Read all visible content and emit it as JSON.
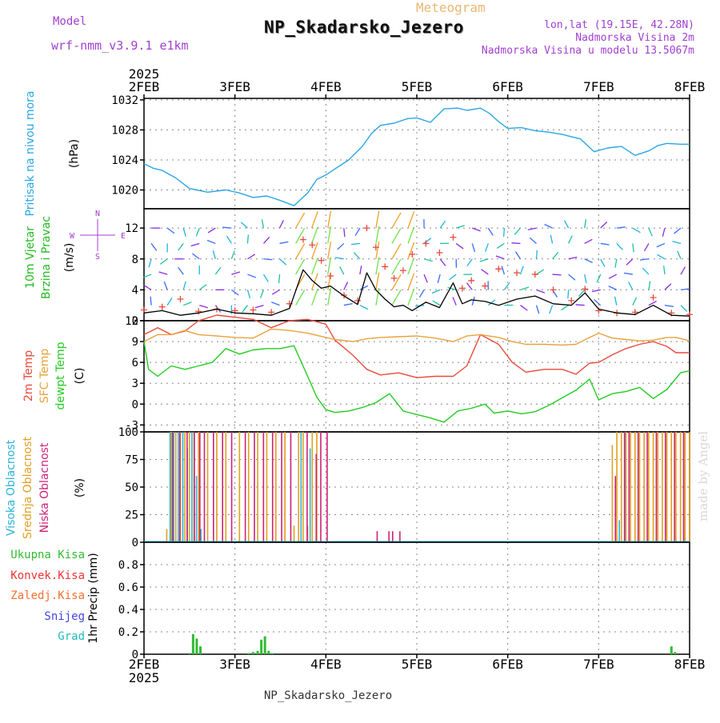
{
  "header": {
    "model_label": "Model",
    "model_name": "wrf-nmm_v3.9.1  e1km",
    "suptitle": "Meteogram",
    "title": "NP_Skadarsko_Jezero",
    "location_line1": "lon,lat (19.15E, 42.28N)",
    "location_line2": "Nadmorska Visina 2m",
    "location_line3": "Nadmorska Visina u modelu 13.5067m",
    "footer": "NP_Skadarsko_Jezero",
    "credit": "made by Angel"
  },
  "colors": {
    "pressure": "#29a6e6",
    "wind_label": "#22bb22",
    "temp2m": "#e84a3c",
    "sfc": "#e8a23a",
    "dewpt": "#22cc22",
    "high_cloud": "#2bb3d9",
    "mid_cloud": "#e0a020",
    "low_cloud": "#cc2277",
    "total_precip": "#33bb33",
    "conv_precip": "#e33",
    "froz_precip": "#f07030",
    "snow": "#4444dd",
    "grad": "#22bbbb",
    "header_purple": "#a040d0",
    "suptitle_color": "#e8b870"
  },
  "chart_data": [
    {
      "type": "line",
      "name": "pressure",
      "title": "",
      "ylabel": [
        "Pritisak na nivou mora",
        "(hPa)"
      ],
      "x_year_top": "2025",
      "x_ticks": [
        "2FEB",
        "3FEB",
        "4FEB",
        "5FEB",
        "6FEB",
        "7FEB",
        "8FEB"
      ],
      "xlim": [
        0,
        6
      ],
      "ylim": [
        1017.5,
        1032.2
      ],
      "yticks": [
        1020,
        1024,
        1028,
        1032
      ],
      "grid": true,
      "series": [
        {
          "x": [
            0,
            0.1,
            0.2,
            0.35,
            0.5,
            0.7,
            0.9,
            1.05,
            1.2,
            1.35,
            1.5,
            1.65,
            1.8,
            1.9,
            2.0,
            2.1,
            2.25,
            2.4,
            2.5,
            2.6,
            2.75,
            2.9,
            3.0,
            3.15,
            3.3,
            3.45,
            3.55,
            3.7,
            3.8,
            3.9,
            4.0,
            4.15,
            4.3,
            4.45,
            4.6,
            4.7,
            4.8,
            4.95,
            5.1,
            5.25,
            5.4,
            5.55,
            5.65,
            5.75,
            5.9,
            6.0
          ],
          "y": [
            1023.5,
            1022.9,
            1022.6,
            1021.6,
            1020.2,
            1019.7,
            1020.0,
            1019.6,
            1019.0,
            1019.2,
            1018.6,
            1017.9,
            1019.6,
            1021.4,
            1022.0,
            1022.8,
            1024.0,
            1025.8,
            1027.5,
            1028.6,
            1028.9,
            1029.5,
            1029.6,
            1029.0,
            1030.8,
            1030.9,
            1030.6,
            1030.9,
            1030.2,
            1029.1,
            1028.2,
            1028.3,
            1027.9,
            1027.7,
            1027.4,
            1027.1,
            1026.8,
            1025.1,
            1025.6,
            1025.8,
            1024.6,
            1025.2,
            1025.9,
            1026.2,
            1026.1,
            1026.1
          ]
        }
      ]
    },
    {
      "type": "line",
      "name": "wind",
      "title": "",
      "ylabel": [
        "10m Vjetar",
        "Brzina i Pravac",
        "(m/s)"
      ],
      "compass_labels": [
        "N",
        "W",
        "E",
        "S"
      ],
      "xlim": [
        0,
        6
      ],
      "ylim": [
        0,
        14.5
      ],
      "yticks": [
        0,
        4,
        8,
        12
      ],
      "grid": true,
      "series": [
        {
          "name": "speed",
          "x": [
            0,
            0.2,
            0.4,
            0.6,
            0.8,
            1.0,
            1.2,
            1.4,
            1.6,
            1.75,
            1.85,
            1.95,
            2.05,
            2.2,
            2.35,
            2.45,
            2.55,
            2.65,
            2.75,
            2.85,
            2.95,
            3.1,
            3.25,
            3.4,
            3.5,
            3.6,
            3.75,
            3.9,
            4.1,
            4.3,
            4.5,
            4.7,
            4.85,
            5.0,
            5.2,
            5.4,
            5.6,
            5.8,
            6.0
          ],
          "y": [
            1.0,
            1.3,
            0.7,
            1.0,
            1.5,
            1.0,
            0.9,
            0.7,
            1.6,
            6.6,
            5.2,
            4.2,
            4.5,
            3.2,
            2.1,
            6.2,
            4.0,
            2.8,
            1.8,
            2.0,
            1.3,
            2.4,
            1.7,
            4.9,
            2.2,
            2.7,
            2.5,
            2.0,
            2.8,
            3.2,
            2.2,
            2.0,
            3.6,
            1.5,
            1.0,
            0.8,
            2.0,
            0.7,
            0.6
          ]
        },
        {
          "name": "gust",
          "x": [
            0,
            0.2,
            0.4,
            0.6,
            0.8,
            1.0,
            1.2,
            1.4,
            1.6,
            1.75,
            1.85,
            1.95,
            2.05,
            2.2,
            2.35,
            2.45,
            2.55,
            2.65,
            2.75,
            2.85,
            2.95,
            3.1,
            3.25,
            3.4,
            3.5,
            3.6,
            3.75,
            3.9,
            4.1,
            4.3,
            4.5,
            4.7,
            4.85,
            5.0,
            5.2,
            5.4,
            5.6,
            5.8,
            6.0
          ],
          "y": [
            1.4,
            1.8,
            2.8,
            1.2,
            1.5,
            1.3,
            1.4,
            1.1,
            2.2,
            10.5,
            9.8,
            7.8,
            5.8,
            3.3,
            2.6,
            12.0,
            9.5,
            7.0,
            5.5,
            6.5,
            8.6,
            10.0,
            8.8,
            10.8,
            4.2,
            5.2,
            4.5,
            6.7,
            6.2,
            6.0,
            4.0,
            2.6,
            4.1,
            1.3,
            1.0,
            1.1,
            3.0,
            1.0,
            0.8
          ]
        }
      ]
    },
    {
      "type": "line",
      "name": "temperature",
      "title": "",
      "ylabel": [
        "2m Temp",
        "SFC Temp",
        "dewpt Temp",
        "(C)"
      ],
      "xlim": [
        0,
        6
      ],
      "ylim": [
        -4,
        12
      ],
      "yticks": [
        -3,
        0,
        3,
        6,
        9,
        12
      ],
      "grid": true,
      "series": [
        {
          "name": "2m Temp",
          "x": [
            0,
            0.15,
            0.3,
            0.45,
            0.6,
            0.8,
            1.0,
            1.2,
            1.4,
            1.6,
            1.8,
            2.0,
            2.1,
            2.3,
            2.45,
            2.6,
            2.8,
            3.0,
            3.2,
            3.4,
            3.55,
            3.7,
            3.9,
            4.05,
            4.2,
            4.4,
            4.6,
            4.75,
            4.9,
            5.0,
            5.15,
            5.3,
            5.45,
            5.6,
            5.75,
            5.85,
            6.0
          ],
          "y": [
            10.0,
            11.0,
            10.0,
            10.5,
            12.0,
            12.8,
            12.5,
            12.2,
            11.0,
            12.0,
            12.2,
            11.5,
            9.2,
            7.0,
            5.0,
            4.2,
            4.5,
            3.8,
            4.0,
            4.0,
            5.5,
            10.0,
            8.6,
            6.0,
            4.6,
            5.0,
            5.0,
            4.3,
            5.9,
            6.0,
            7.1,
            8.0,
            8.6,
            9.0,
            8.3,
            7.4,
            7.4
          ]
        },
        {
          "name": "SFC Temp",
          "x": [
            0,
            0.15,
            0.3,
            0.45,
            0.6,
            0.8,
            1.0,
            1.2,
            1.4,
            1.6,
            1.8,
            2.0,
            2.1,
            2.3,
            2.45,
            2.6,
            2.8,
            3.0,
            3.2,
            3.4,
            3.55,
            3.7,
            3.9,
            4.05,
            4.2,
            4.4,
            4.6,
            4.75,
            4.9,
            5.0,
            5.15,
            5.3,
            5.45,
            5.6,
            5.75,
            5.85,
            6.0
          ],
          "y": [
            9.0,
            10.0,
            10.0,
            10.6,
            10.0,
            9.8,
            9.6,
            9.5,
            10.8,
            10.6,
            10.2,
            9.6,
            9.3,
            9.0,
            9.4,
            9.6,
            9.7,
            9.8,
            9.5,
            9.0,
            9.8,
            10.0,
            9.6,
            9.0,
            8.6,
            8.6,
            8.5,
            8.6,
            9.6,
            10.2,
            9.5,
            9.3,
            9.1,
            9.2,
            9.6,
            9.6,
            9.1
          ]
        },
        {
          "name": "dewpt Temp",
          "x": [
            0,
            0.05,
            0.15,
            0.3,
            0.45,
            0.6,
            0.75,
            0.9,
            1.05,
            1.2,
            1.35,
            1.5,
            1.65,
            1.8,
            1.9,
            2.0,
            2.1,
            2.25,
            2.4,
            2.55,
            2.7,
            2.85,
            3.0,
            3.15,
            3.3,
            3.45,
            3.6,
            3.75,
            3.85,
            4.0,
            4.15,
            4.3,
            4.45,
            4.6,
            4.75,
            4.9,
            5.0,
            5.15,
            5.3,
            5.45,
            5.6,
            5.75,
            5.9,
            6.0
          ],
          "y": [
            9.0,
            5.0,
            4.0,
            5.5,
            5.0,
            5.5,
            6.0,
            8.0,
            7.2,
            7.8,
            8.0,
            8.0,
            8.4,
            4.0,
            1.0,
            -0.8,
            -1.2,
            -1.0,
            -0.5,
            0.2,
            1.5,
            -1.0,
            -1.5,
            -2.0,
            -2.6,
            -1.0,
            -0.6,
            0.0,
            -1.3,
            -1.0,
            -1.4,
            -1.1,
            -0.2,
            0.9,
            2.0,
            3.6,
            0.6,
            1.5,
            1.8,
            2.4,
            0.8,
            2.1,
            4.5,
            4.8
          ]
        }
      ]
    },
    {
      "type": "bar",
      "name": "cloud",
      "title": "",
      "ylabel": [
        "Visoka Oblacnost",
        "Srednja Oblacnost",
        "Niska  Oblacnost",
        "(%)"
      ],
      "xlim": [
        0,
        6
      ],
      "ylim": [
        0,
        100
      ],
      "yticks": [
        0,
        25,
        50,
        75,
        100
      ],
      "grid": true,
      "series": [
        {
          "name": "Srednja Oblacnost",
          "x": [
            0.25,
            0.3,
            0.35,
            0.4,
            0.45,
            0.5,
            0.55,
            0.6,
            0.7,
            0.8,
            0.9,
            1.05,
            1.15,
            1.25,
            1.35,
            1.45,
            1.55,
            1.65,
            1.7,
            1.75,
            1.8,
            1.85,
            1.9,
            5.15,
            5.2,
            5.25,
            5.3,
            5.35,
            5.4,
            5.45,
            5.5,
            5.55,
            5.6,
            5.65,
            5.7,
            5.75,
            5.8,
            5.85,
            5.9,
            5.95,
            6.0
          ],
          "y": [
            12,
            100,
            100,
            100,
            100,
            100,
            100,
            100,
            100,
            100,
            100,
            100,
            100,
            100,
            100,
            100,
            100,
            15,
            100,
            100,
            15,
            100,
            100,
            88,
            100,
            100,
            100,
            100,
            100,
            100,
            100,
            100,
            100,
            100,
            100,
            100,
            100,
            100,
            100,
            100,
            100
          ]
        },
        {
          "name": "Visoka Oblacnost",
          "x": [
            0.28,
            0.32,
            0.37,
            0.42,
            0.47,
            0.52,
            0.57,
            0.62,
            1.72,
            1.82,
            5.22,
            5.28
          ],
          "y": [
            100,
            100,
            100,
            100,
            85,
            100,
            60,
            12,
            100,
            85,
            20,
            100
          ]
        },
        {
          "name": "Niska  Oblacnost",
          "x": [
            0.3,
            0.38,
            0.46,
            0.54,
            0.6,
            0.65,
            0.75,
            0.85,
            0.95,
            1.1,
            1.2,
            1.3,
            1.4,
            1.5,
            1.6,
            1.78,
            1.88,
            1.93,
            2.0,
            2.55,
            2.68,
            2.72,
            2.8,
            5.17,
            5.27,
            5.32,
            5.42,
            5.52,
            5.62,
            5.72,
            5.82,
            5.92
          ],
          "y": [
            100,
            100,
            100,
            100,
            100,
            100,
            100,
            100,
            100,
            100,
            100,
            100,
            100,
            100,
            100,
            100,
            80,
            100,
            100,
            10,
            10,
            10,
            10,
            60,
            100,
            100,
            100,
            100,
            100,
            100,
            100,
            100
          ]
        }
      ]
    },
    {
      "type": "bar",
      "name": "precipitation",
      "title": "",
      "ylabel": "1hr Precip (mm)",
      "legend": [
        "Ukupna Kisa",
        "Konvek.Kisa",
        "Zaledj.Kisa",
        "Snijeg",
        "Grad"
      ],
      "xlim": [
        0,
        6
      ],
      "ylim": [
        0,
        1.0
      ],
      "yticks": [
        0,
        0.2,
        0.4,
        0.6,
        0.8
      ],
      "x_ticks": [
        "2FEB",
        "3FEB",
        "4FEB",
        "5FEB",
        "6FEB",
        "7FEB",
        "8FEB"
      ],
      "x_year_bottom": "2025",
      "grid": true,
      "series": [
        {
          "name": "Ukupna Kisa",
          "x": [
            0.5,
            0.54,
            0.58,
            0.62,
            1.15,
            1.2,
            1.25,
            1.29,
            1.33,
            1.37,
            1.41,
            5.8,
            5.84
          ],
          "y": [
            0.01,
            0.18,
            0.14,
            0.07,
            0.01,
            0.02,
            0.03,
            0.13,
            0.16,
            0.03,
            0.01,
            0.07,
            0.02
          ]
        }
      ]
    }
  ]
}
